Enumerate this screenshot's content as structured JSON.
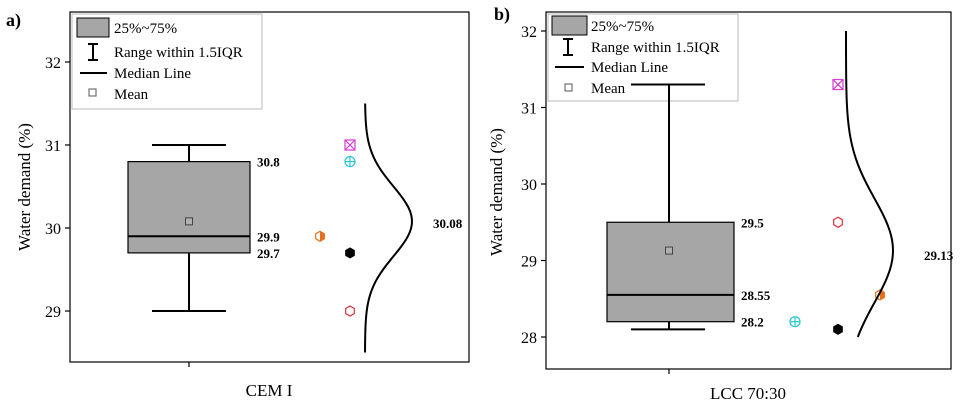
{
  "legend": {
    "box_label": "25%~75%",
    "whisker_label": "Range within 1.5IQR",
    "median_label": "Median Line",
    "mean_label": "Mean"
  },
  "chart_data": [
    {
      "type": "box",
      "panel_label": "a)",
      "ylabel": "Water demand (%)",
      "xlabel": "CEM I",
      "ylim": [
        28.5,
        32.5
      ],
      "yticks": [
        "29",
        "30",
        "31",
        "32"
      ],
      "legend_position": "top-left",
      "box": {
        "q1": 29.7,
        "median": 29.9,
        "q3": 30.8,
        "whisker_low": 29.0,
        "whisker_high": 31.0,
        "mean": 30.08
      },
      "value_labels": {
        "q3": "30.8",
        "median": "29.9",
        "q1": "29.7",
        "mean": "30.08"
      },
      "points": [
        {
          "value": 31.0,
          "marker": "square-x",
          "color": "#d63bd6"
        },
        {
          "value": 30.8,
          "marker": "circle-plus",
          "color": "#26c6d6"
        },
        {
          "value": 29.9,
          "marker": "half-hexagon",
          "color": "#e8701c",
          "col": "left"
        },
        {
          "value": 29.7,
          "marker": "hexagon-filled",
          "color": "#000000"
        },
        {
          "value": 29.0,
          "marker": "hexagon",
          "color": "#e0303a"
        }
      ],
      "distribution": {
        "mean": 30.08,
        "y_range": [
          28.5,
          31.5
        ]
      }
    },
    {
      "type": "box",
      "panel_label": "b)",
      "ylabel": "Water demand (%)",
      "xlabel": "LCC 70:30",
      "ylim": [
        27.6,
        32.5
      ],
      "yticks": [
        "28",
        "29",
        "30",
        "31",
        "32"
      ],
      "legend_position": "top-left",
      "box": {
        "q1": 28.2,
        "median": 28.55,
        "q3": 29.5,
        "whisker_low": 28.1,
        "whisker_high": 31.3,
        "mean": 29.13
      },
      "value_labels": {
        "q3": "29.5",
        "median": "28.55",
        "q1": "28.2",
        "mean": "29.13"
      },
      "points": [
        {
          "value": 31.3,
          "marker": "square-x",
          "color": "#d63bd6"
        },
        {
          "value": 29.5,
          "marker": "hexagon",
          "color": "#e0303a"
        },
        {
          "value": 28.55,
          "marker": "half-hexagon",
          "color": "#e8701c",
          "col": "right"
        },
        {
          "value": 28.2,
          "marker": "circle-plus",
          "color": "#26c6d6",
          "col": "left"
        },
        {
          "value": 28.1,
          "marker": "hexagon-filled",
          "color": "#000000"
        }
      ],
      "distribution": {
        "mean": 29.13,
        "y_range": [
          28.0,
          32.0
        ]
      }
    }
  ]
}
